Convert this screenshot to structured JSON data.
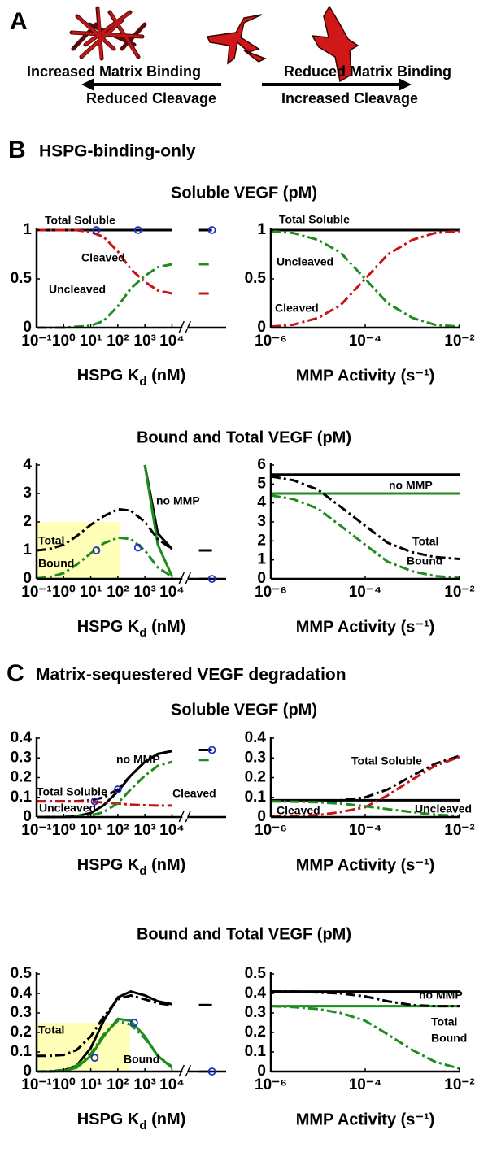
{
  "panel_a": {
    "label": "A",
    "left_top": "Increased Matrix Binding",
    "left_bottom": "Reduced Cleavage",
    "right_top": "Reduced Matrix Binding",
    "right_bottom": "Increased Cleavage"
  },
  "panel_b": {
    "label": "B",
    "title": "HSPG-binding-only",
    "row_titles": [
      "Soluble VEGF (pM)",
      "Bound and Total VEGF (pM)"
    ]
  },
  "panel_c": {
    "label": "C",
    "title": "Matrix-sequestered VEGF degradation",
    "row_titles": [
      "Soluble VEGF (pM)",
      "Bound and Total VEGF (pM)"
    ]
  },
  "chart_data": [
    {
      "type": "line",
      "xscale": "log",
      "xlabel": [
        "HSPG K",
        "d",
        " (nM)"
      ],
      "axis_break": 30000,
      "x": [
        0.1,
        0.3,
        1,
        3,
        10,
        30,
        100,
        300,
        1000,
        3000,
        10000,
        30000,
        100000,
        300000
      ],
      "xlim": [
        0.1,
        1000000
      ],
      "ylim": [
        0,
        1
      ],
      "xticks": [
        {
          "value": 0.1,
          "label": "10⁻¹"
        },
        {
          "value": 1,
          "label": "10⁰"
        },
        {
          "value": 10,
          "label": "10¹"
        },
        {
          "value": 100,
          "label": "10²"
        },
        {
          "value": 1000,
          "label": "10³"
        },
        {
          "value": 10000,
          "label": "10⁴"
        }
      ],
      "yticks": [
        0,
        0.5,
        1
      ],
      "series": [
        {
          "name": "Total Soluble",
          "color": "#000000",
          "style": "solid",
          "values": [
            1,
            1,
            1,
            1,
            1,
            1,
            1,
            1,
            1,
            1,
            1,
            null,
            1,
            1
          ]
        },
        {
          "name": "Cleaved",
          "color": "#c81414",
          "style": "dashdot",
          "values": [
            1,
            1,
            1,
            1,
            0.98,
            0.93,
            0.78,
            0.6,
            0.47,
            0.38,
            0.35,
            null,
            0.35,
            0.35
          ]
        },
        {
          "name": "Uncleaved",
          "color": "#1e8c1e",
          "style": "dashdot",
          "values": [
            0,
            0,
            0,
            0.01,
            0.02,
            0.07,
            0.22,
            0.4,
            0.53,
            0.62,
            0.65,
            null,
            0.65,
            0.65
          ]
        }
      ],
      "markers": {
        "color": "#2030d0",
        "x": [
          16,
          560,
          300000
        ],
        "values": [
          1,
          1,
          1
        ]
      }
    },
    {
      "type": "line",
      "xscale": "log",
      "xlabel": "MMP Activity (s⁻¹)",
      "x": [
        1e-06,
        3e-06,
        1e-05,
        3e-05,
        0.0001,
        0.0003,
        0.001,
        0.003,
        0.01
      ],
      "xlim": [
        1e-06,
        0.01
      ],
      "ylim": [
        0,
        1
      ],
      "xticks": [
        {
          "value": 1e-06,
          "label": "10⁻⁶"
        },
        {
          "value": 0.0001,
          "label": "10⁻⁴"
        },
        {
          "value": 0.01,
          "label": "10⁻²"
        }
      ],
      "yticks": [
        0,
        0.5,
        1
      ],
      "series": [
        {
          "name": "Total Soluble",
          "color": "#000000",
          "style": "solid",
          "values": [
            1,
            1,
            1,
            1,
            1,
            1,
            1,
            1,
            1
          ]
        },
        {
          "name": "Uncleaved",
          "color": "#1e8c1e",
          "style": "dashdot",
          "values": [
            0.99,
            0.97,
            0.9,
            0.77,
            0.5,
            0.25,
            0.1,
            0.03,
            0.01
          ]
        },
        {
          "name": "Cleaved",
          "color": "#c81414",
          "style": "dashdot",
          "values": [
            0.01,
            0.03,
            0.1,
            0.23,
            0.5,
            0.75,
            0.9,
            0.97,
            0.99
          ]
        }
      ]
    },
    {
      "type": "line",
      "xscale": "log",
      "xlabel": [
        "HSPG K",
        "d",
        " (nM)"
      ],
      "axis_break": 30000,
      "x": [
        0.1,
        0.3,
        1,
        3,
        10,
        30,
        100,
        300,
        1000,
        3000,
        10000,
        30000,
        100000,
        300000
      ],
      "xlim": [
        0.1,
        1000000
      ],
      "ylim": [
        0,
        4
      ],
      "xticks": [
        {
          "value": 0.1,
          "label": "10⁻¹"
        },
        {
          "value": 1,
          "label": "10⁰"
        },
        {
          "value": 10,
          "label": "10¹"
        },
        {
          "value": 100,
          "label": "10²"
        },
        {
          "value": 1000,
          "label": "10³"
        },
        {
          "value": 10000,
          "label": "10⁴"
        }
      ],
      "yticks": [
        0,
        1,
        2,
        3,
        4
      ],
      "shade": {
        "color": "#ffffb8",
        "x": [
          0.1,
          120
        ],
        "y": [
          0,
          2
        ]
      },
      "series": [
        {
          "name": "no MMP",
          "color": "#000000",
          "style": "solid",
          "values": [
            null,
            null,
            null,
            null,
            null,
            null,
            null,
            null,
            4,
            1.6,
            1.05,
            null,
            1,
            1
          ]
        },
        {
          "color": "#1e8c1e",
          "style": "solid",
          "values": [
            null,
            null,
            null,
            null,
            null,
            null,
            null,
            null,
            4,
            1.2,
            0.1,
            null,
            0,
            0
          ]
        },
        {
          "name": "Total",
          "color": "#000000",
          "style": "dashdot",
          "values": [
            1,
            1.05,
            1.2,
            1.5,
            1.9,
            2.2,
            2.45,
            2.4,
            2,
            1.4,
            1.05,
            null,
            1,
            1
          ]
        },
        {
          "name": "Bound",
          "color": "#1e8c1e",
          "style": "dashdot",
          "values": [
            0.02,
            0.06,
            0.2,
            0.5,
            0.9,
            1.25,
            1.45,
            1.4,
            1,
            0.4,
            0.08,
            null,
            0,
            0
          ]
        }
      ],
      "markers": {
        "color": "#2030d0",
        "x": [
          16,
          560,
          300000
        ],
        "values": [
          1,
          1.1,
          0
        ]
      }
    },
    {
      "type": "line",
      "xscale": "log",
      "xlabel": "MMP Activity (s⁻¹)",
      "x": [
        1e-06,
        3e-06,
        1e-05,
        3e-05,
        0.0001,
        0.0003,
        0.001,
        0.003,
        0.01
      ],
      "xlim": [
        1e-06,
        0.01
      ],
      "ylim": [
        0,
        6
      ],
      "xticks": [
        {
          "value": 1e-06,
          "label": "10⁻⁶"
        },
        {
          "value": 0.0001,
          "label": "10⁻⁴"
        },
        {
          "value": 0.01,
          "label": "10⁻²"
        }
      ],
      "yticks": [
        0,
        1,
        2,
        3,
        4,
        5,
        6
      ],
      "series": [
        {
          "name": "no MMP",
          "color": "#000000",
          "style": "solid",
          "values": [
            5.5,
            5.5,
            5.5,
            5.5,
            5.5,
            5.5,
            5.5,
            5.5,
            5.5
          ]
        },
        {
          "color": "#1e8c1e",
          "style": "solid",
          "values": [
            4.5,
            4.5,
            4.5,
            4.5,
            4.5,
            4.5,
            4.5,
            4.5,
            4.5
          ]
        },
        {
          "name": "Total",
          "color": "#000000",
          "style": "dashdot",
          "values": [
            5.4,
            5.2,
            4.7,
            3.8,
            2.8,
            1.9,
            1.4,
            1.15,
            1.05
          ]
        },
        {
          "name": "Bound",
          "color": "#1e8c1e",
          "style": "dashdot",
          "values": [
            4.4,
            4.2,
            3.7,
            2.8,
            1.8,
            0.9,
            0.4,
            0.15,
            0.05
          ]
        }
      ]
    },
    {
      "type": "line",
      "xscale": "log",
      "xlabel": [
        "HSPG K",
        "d",
        " (nM)"
      ],
      "axis_break": 30000,
      "x": [
        0.1,
        0.3,
        1,
        3,
        10,
        30,
        100,
        300,
        1000,
        3000,
        10000,
        30000,
        100000,
        300000
      ],
      "xlim": [
        0.1,
        1000000
      ],
      "ylim": [
        0,
        0.4
      ],
      "xticks": [
        {
          "value": 0.1,
          "label": "10⁻¹"
        },
        {
          "value": 1,
          "label": "10⁰"
        },
        {
          "value": 10,
          "label": "10¹"
        },
        {
          "value": 100,
          "label": "10²"
        },
        {
          "value": 1000,
          "label": "10³"
        },
        {
          "value": 10000,
          "label": "10⁴"
        }
      ],
      "yticks": [
        0,
        0.1,
        0.2,
        0.3,
        0.4
      ],
      "series": [
        {
          "name": "no MMP",
          "color": "#000000",
          "style": "solid",
          "values": [
            0,
            0,
            0,
            0.005,
            0.02,
            0.06,
            0.13,
            0.21,
            0.28,
            0.32,
            0.335,
            null,
            0.34,
            0.34
          ]
        },
        {
          "name": "Total Soluble",
          "color": "#000000",
          "style": "dashdot",
          "values": [
            0.08,
            0.08,
            0.08,
            0.08,
            0.085,
            0.1,
            0.14,
            0.21,
            0.28,
            0.32,
            0.335,
            null,
            0.34,
            0.34
          ]
        },
        {
          "name": "Cleaved",
          "color": "#c81414",
          "style": "dashdot",
          "values": [
            0.08,
            0.08,
            0.08,
            0.08,
            0.078,
            0.074,
            0.068,
            0.063,
            0.06,
            0.058,
            0.058,
            null,
            null,
            null
          ]
        },
        {
          "name": "Uncleaved",
          "color": "#1e8c1e",
          "style": "dashdot",
          "values": [
            0,
            0,
            0,
            0.002,
            0.008,
            0.025,
            0.07,
            0.14,
            0.21,
            0.26,
            0.28,
            null,
            0.29,
            0.29
          ]
        }
      ],
      "markers": {
        "color": "#2030d0",
        "x": [
          14,
          100,
          300000
        ],
        "values": [
          0.08,
          0.14,
          0.34
        ]
      }
    },
    {
      "type": "line",
      "xscale": "log",
      "xlabel": "MMP Activity (s⁻¹)",
      "x": [
        1e-06,
        3e-06,
        1e-05,
        3e-05,
        0.0001,
        0.0003,
        0.001,
        0.003,
        0.01
      ],
      "xlim": [
        1e-06,
        0.01
      ],
      "ylim": [
        0,
        0.4
      ],
      "xticks": [
        {
          "value": 1e-06,
          "label": "10⁻⁶"
        },
        {
          "value": 0.0001,
          "label": "10⁻⁴"
        },
        {
          "value": 0.01,
          "label": "10⁻²"
        }
      ],
      "yticks": [
        0,
        0.1,
        0.2,
        0.3,
        0.4
      ],
      "series": [
        {
          "color": "#000000",
          "style": "solid",
          "values": [
            0.085,
            0.085,
            0.085,
            0.085,
            0.085,
            0.085,
            0.085,
            0.085,
            0.085
          ]
        },
        {
          "name": "Total Soluble",
          "color": "#000000",
          "style": "dashdot",
          "values": [
            0.08,
            0.08,
            0.082,
            0.085,
            0.1,
            0.14,
            0.21,
            0.27,
            0.31
          ]
        },
        {
          "name": "Cleaved",
          "color": "#c81414",
          "style": "dashdot",
          "values": [
            0.002,
            0.005,
            0.01,
            0.025,
            0.05,
            0.11,
            0.19,
            0.26,
            0.305
          ]
        },
        {
          "name": "Uncleaved",
          "color": "#1e8c1e",
          "style": "dashdot",
          "values": [
            0.08,
            0.078,
            0.075,
            0.068,
            0.055,
            0.04,
            0.025,
            0.012,
            0.005
          ]
        }
      ]
    },
    {
      "type": "line",
      "xscale": "log",
      "xlabel": [
        "HSPG K",
        "d",
        " (nM)"
      ],
      "axis_break": 30000,
      "x": [
        0.1,
        0.3,
        1,
        3,
        10,
        30,
        100,
        300,
        1000,
        3000,
        10000,
        30000,
        100000,
        300000
      ],
      "xlim": [
        0.1,
        1000000
      ],
      "ylim": [
        0,
        0.5
      ],
      "xticks": [
        {
          "value": 0.1,
          "label": "10⁻¹"
        },
        {
          "value": 1,
          "label": "10⁰"
        },
        {
          "value": 10,
          "label": "10¹"
        },
        {
          "value": 100,
          "label": "10²"
        },
        {
          "value": 1000,
          "label": "10³"
        },
        {
          "value": 10000,
          "label": "10⁴"
        }
      ],
      "yticks": [
        0,
        0.1,
        0.2,
        0.3,
        0.4,
        0.5
      ],
      "shade": {
        "color": "#ffffb8",
        "x": [
          0.1,
          280
        ],
        "y": [
          0,
          0.25
        ]
      },
      "series": [
        {
          "color": "#000000",
          "style": "solid",
          "values": [
            0,
            0,
            0.005,
            0.03,
            0.12,
            0.26,
            0.38,
            0.41,
            0.39,
            0.36,
            0.345,
            null,
            0.34,
            0.34
          ]
        },
        {
          "color": "#1e8c1e",
          "style": "solid",
          "values": [
            0,
            0,
            0.003,
            0.02,
            0.08,
            0.18,
            0.27,
            0.26,
            0.18,
            0.08,
            0.02,
            null,
            0,
            0
          ]
        },
        {
          "name": "Total",
          "color": "#000000",
          "style": "dashdot",
          "values": [
            0.08,
            0.08,
            0.085,
            0.11,
            0.18,
            0.28,
            0.37,
            0.39,
            0.37,
            0.35,
            0.34,
            null,
            0.34,
            0.34
          ]
        },
        {
          "name": "Bound",
          "color": "#1e8c1e",
          "style": "dashdot",
          "values": [
            0,
            0.002,
            0.008,
            0.03,
            0.09,
            0.19,
            0.26,
            0.24,
            0.17,
            0.08,
            0.025,
            null,
            0,
            0
          ]
        }
      ],
      "markers": {
        "color": "#2030d0",
        "x": [
          14,
          400,
          300000
        ],
        "values": [
          0.07,
          0.25,
          0
        ]
      }
    },
    {
      "type": "line",
      "xscale": "log",
      "xlabel": "MMP Activity (s⁻¹)",
      "x": [
        1e-06,
        3e-06,
        1e-05,
        3e-05,
        0.0001,
        0.0003,
        0.001,
        0.003,
        0.01
      ],
      "xlim": [
        1e-06,
        0.01
      ],
      "ylim": [
        0,
        0.5
      ],
      "xticks": [
        {
          "value": 1e-06,
          "label": "10⁻⁶"
        },
        {
          "value": 0.0001,
          "label": "10⁻⁴"
        },
        {
          "value": 0.01,
          "label": "10⁻²"
        }
      ],
      "yticks": [
        0,
        0.1,
        0.2,
        0.3,
        0.4,
        0.5
      ],
      "series": [
        {
          "name": "no MMP",
          "color": "#000000",
          "style": "solid",
          "values": [
            0.41,
            0.41,
            0.41,
            0.41,
            0.41,
            0.41,
            0.41,
            0.41,
            0.41
          ]
        },
        {
          "color": "#1e8c1e",
          "style": "solid",
          "values": [
            0.335,
            0.335,
            0.335,
            0.335,
            0.335,
            0.335,
            0.335,
            0.335,
            0.335
          ]
        },
        {
          "name": "Total",
          "color": "#000000",
          "style": "dashdot",
          "values": [
            0.41,
            0.41,
            0.405,
            0.4,
            0.385,
            0.36,
            0.34,
            0.335,
            0.335
          ]
        },
        {
          "name": "Bound",
          "color": "#1e8c1e",
          "style": "dashdot",
          "values": [
            0.335,
            0.33,
            0.32,
            0.3,
            0.26,
            0.19,
            0.11,
            0.05,
            0.015
          ]
        }
      ]
    }
  ]
}
